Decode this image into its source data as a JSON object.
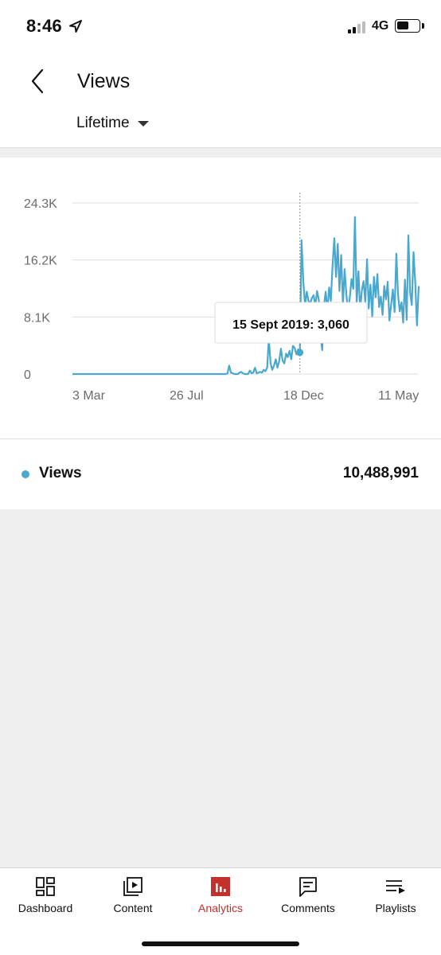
{
  "status_bar": {
    "time": "8:46",
    "network": "4G",
    "battery_level": 0.55,
    "signal_bars": 2,
    "signal_total": 4
  },
  "header": {
    "title": "Views",
    "period": "Lifetime"
  },
  "colors": {
    "series": "#4aa8cf",
    "accent": "#c4302b",
    "text": "#111111",
    "muted": "#6b6b6b",
    "grid": "#dedede"
  },
  "chart_data": {
    "type": "line",
    "title": "",
    "xlabel": "",
    "ylabel": "",
    "ylim": [
      0,
      24300
    ],
    "yticks": [
      "0",
      "8.1K",
      "16.2K",
      "24.3K"
    ],
    "ytick_values": [
      0,
      8100,
      16200,
      24300
    ],
    "xticks": [
      "3 Mar",
      "26 Jul",
      "18 Dec",
      "11 May"
    ],
    "grid": true,
    "tooltip": {
      "label": "15 Sept 2019: 3,060",
      "value": 3060
    },
    "series": [
      {
        "name": "Views",
        "values": [
          0,
          0,
          0,
          0,
          0,
          0,
          0,
          0,
          0,
          0,
          0,
          0,
          0,
          0,
          0,
          0,
          0,
          0,
          0,
          0,
          0,
          0,
          0,
          0,
          0,
          0,
          0,
          0,
          0,
          0,
          0,
          0,
          0,
          0,
          0,
          0,
          0,
          0,
          0,
          0,
          0,
          0,
          0,
          0,
          0,
          0,
          0,
          0,
          0,
          0,
          0,
          0,
          0,
          0,
          0,
          0,
          0,
          0,
          0,
          0,
          0,
          0,
          0,
          0,
          0,
          0,
          0,
          0,
          0,
          0,
          0,
          0,
          0,
          0,
          0,
          0,
          0,
          0,
          0,
          0,
          0,
          0,
          0,
          0,
          0,
          0,
          0,
          0,
          0,
          0,
          100,
          1200,
          200,
          100,
          0,
          0,
          0,
          200,
          300,
          100,
          0,
          0,
          0,
          500,
          100,
          200,
          900,
          100,
          200,
          300,
          200,
          600,
          400,
          900,
          5000,
          1500,
          600,
          1200,
          2100,
          900,
          1800,
          3600,
          1900,
          1500,
          2900,
          2400,
          3300,
          2100,
          4000,
          3700,
          2800,
          3500,
          3060,
          19000,
          13200,
          9800,
          11700,
          10400,
          10000,
          10800,
          11200,
          9600,
          11800,
          10500,
          5500,
          3400,
          9700,
          11700,
          9100,
          12300,
          10400,
          15500,
          19300,
          13800,
          18500,
          11800,
          16900,
          9800,
          14900,
          11300,
          8700,
          10800,
          13500,
          12100,
          22300,
          10100,
          14600,
          9100,
          11900,
          13200,
          10200,
          16300,
          9300,
          12700,
          8200,
          13800,
          10900,
          14200,
          9500,
          11000,
          8400,
          12500,
          10600,
          13100,
          7600,
          9900,
          12000,
          8800,
          17100,
          11300,
          8900,
          10200,
          7300,
          13400,
          7700,
          19700,
          11600,
          9800,
          17300,
          12900,
          6900,
          12500
        ]
      }
    ]
  },
  "summary": {
    "metric_label": "Views",
    "metric_value": "10,488,991"
  },
  "tabs": [
    {
      "label": "Dashboard",
      "icon": "dashboard-icon",
      "active": false
    },
    {
      "label": "Content",
      "icon": "content-icon",
      "active": false
    },
    {
      "label": "Analytics",
      "icon": "analytics-icon",
      "active": true
    },
    {
      "label": "Comments",
      "icon": "comments-icon",
      "active": false
    },
    {
      "label": "Playlists",
      "icon": "playlists-icon",
      "active": false
    }
  ]
}
